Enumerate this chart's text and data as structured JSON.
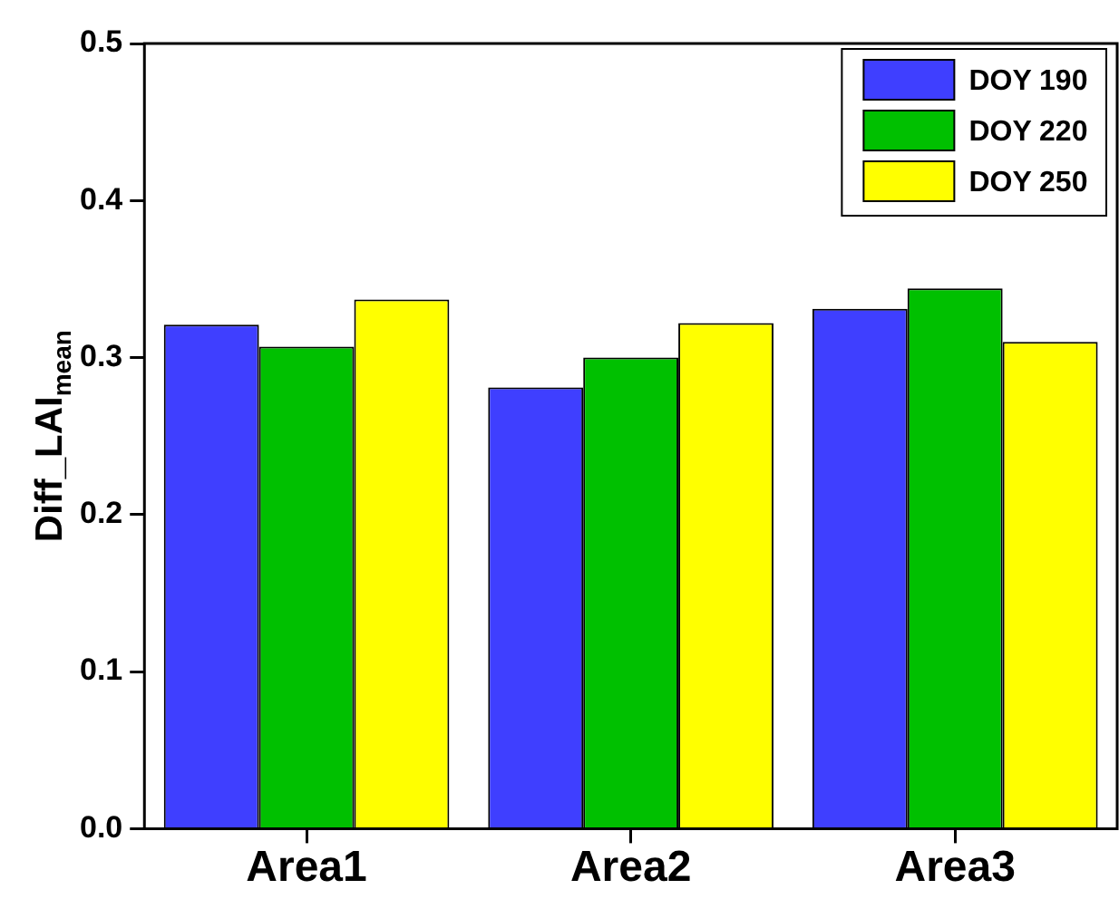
{
  "chart_data": {
    "type": "bar",
    "ylabel": "Diff_LAI$_{mean}$",
    "categories": [
      "Area1",
      "Area2",
      "Area3"
    ],
    "series": [
      {
        "name": "DOY 190",
        "color": "#3f3fff",
        "values": [
          0.321,
          0.281,
          0.331
        ]
      },
      {
        "name": "DOY 220",
        "color": "#00c000",
        "values": [
          0.307,
          0.3,
          0.344
        ]
      },
      {
        "name": "DOY 250",
        "color": "#ffff00",
        "values": [
          0.337,
          0.322,
          0.31
        ]
      }
    ],
    "ylim": [
      0,
      0.5
    ],
    "yticks": [
      {
        "value": 0,
        "label": "0.0"
      },
      0.1,
      0.2,
      0.3,
      0.4,
      0.5
    ],
    "grid": false,
    "legend": "top right"
  }
}
